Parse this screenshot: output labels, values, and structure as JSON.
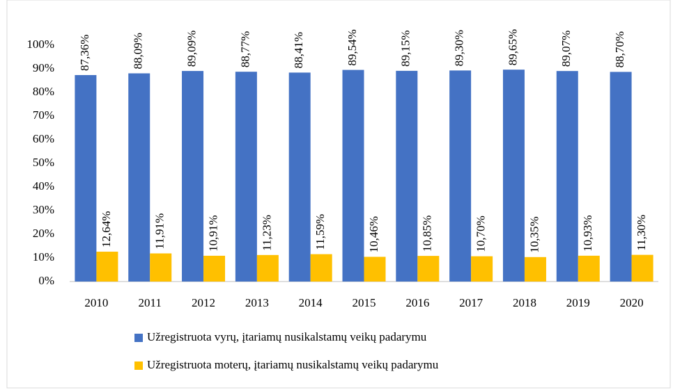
{
  "chart_data": {
    "type": "bar",
    "categories": [
      "2010",
      "2011",
      "2012",
      "2013",
      "2014",
      "2015",
      "2016",
      "2017",
      "2018",
      "2019",
      "2020"
    ],
    "series": [
      {
        "name": "Užregistruota vyrų, įtariamų nusikalstamų veikų padarymu",
        "color": "#4472c4",
        "values": [
          87.36,
          88.09,
          89.09,
          88.77,
          88.41,
          89.54,
          89.15,
          89.3,
          89.65,
          89.07,
          88.7
        ],
        "value_labels": [
          "87,36%",
          "88,09%",
          "89,09%",
          "88,77%",
          "88,41%",
          "89,54%",
          "89,15%",
          "89,30%",
          "89,65%",
          "89,07%",
          "88,70%"
        ]
      },
      {
        "name": "Užregistruota moterų, įtariamų nusikalstamų veikų padarymu",
        "color": "#ffc000",
        "values": [
          12.64,
          11.91,
          10.91,
          11.23,
          11.59,
          10.46,
          10.85,
          10.7,
          10.35,
          10.93,
          11.3
        ],
        "value_labels": [
          "12,64%",
          "11,91%",
          "10,91%",
          "11,23%",
          "11,59%",
          "10,46%",
          "10,85%",
          "10,70%",
          "10,35%",
          "10,93%",
          "11,30%"
        ]
      }
    ],
    "ylim": [
      0,
      100
    ],
    "yticks": [
      {
        "value": 0,
        "label": "0%"
      },
      {
        "value": 10,
        "label": "10%"
      },
      {
        "value": 20,
        "label": "20%"
      },
      {
        "value": 30,
        "label": "30%"
      },
      {
        "value": 40,
        "label": "40%"
      },
      {
        "value": 50,
        "label": "50%"
      },
      {
        "value": 60,
        "label": "60%"
      },
      {
        "value": 70,
        "label": "70%"
      },
      {
        "value": 80,
        "label": "80%"
      },
      {
        "value": 90,
        "label": "90%"
      },
      {
        "value": 100,
        "label": "100%"
      }
    ],
    "grid": false,
    "legend": "bottom"
  }
}
